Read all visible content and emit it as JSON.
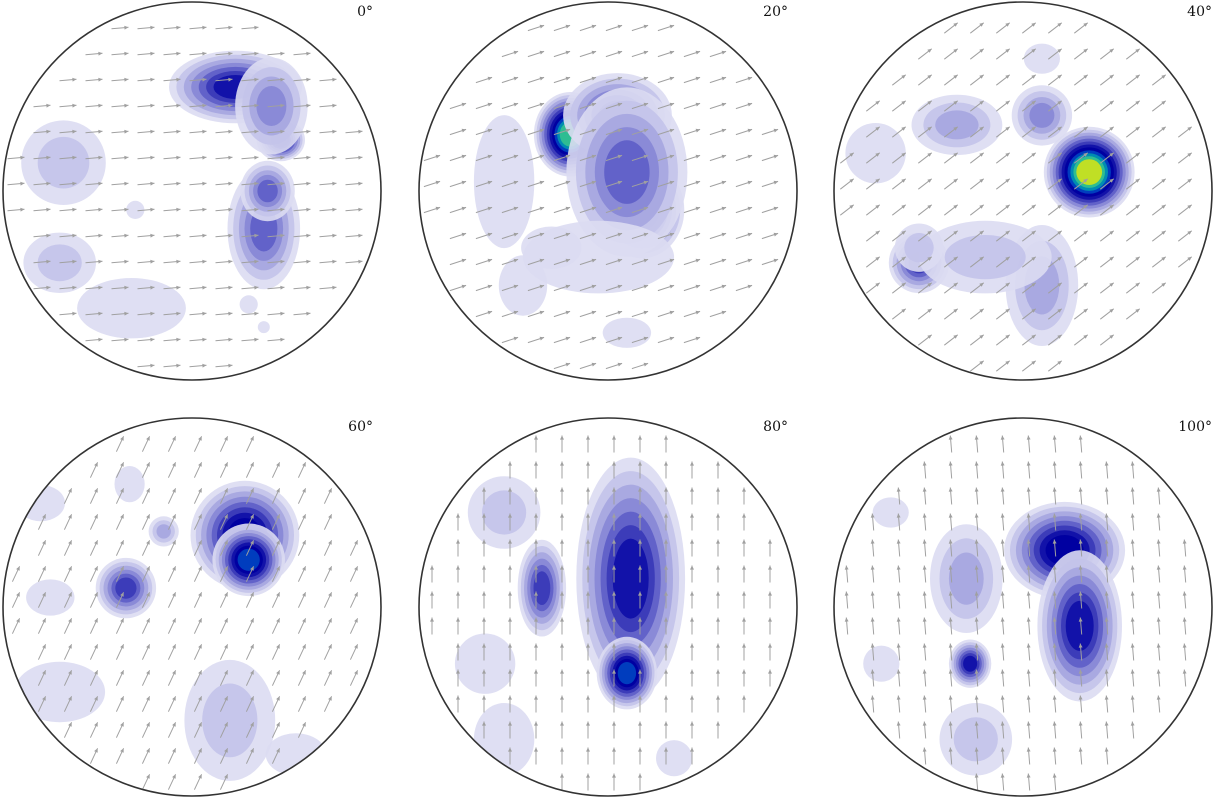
{
  "chart_data": {
    "type": "heatmap",
    "description_kind": "pole figure density contours with vector field",
    "grid": false,
    "legend": false,
    "colormap": [
      "#dcdcf2",
      "#c4c4ea",
      "#a8a8e0",
      "#8888d6",
      "#6060c8",
      "#3a3ab8",
      "#1010a8",
      "#0000a0",
      "#0040c0",
      "#0090b0",
      "#30c090",
      "#c8e020",
      "#f0d000",
      "#f02000"
    ],
    "arrow_color": "#a0a0a0",
    "panels": [
      {
        "label": "0°",
        "angle_deg": 0,
        "arrow_direction_deg": 5,
        "peak_level": 8,
        "blobs": [
          {
            "x": 0.23,
            "y": 0.55,
            "sx": 0.22,
            "sy": 0.12,
            "level": 7
          },
          {
            "x": 0.47,
            "y": 0.27,
            "sx": 0.08,
            "sy": 0.07,
            "level": 8
          },
          {
            "x": 0.42,
            "y": 0.45,
            "sx": 0.12,
            "sy": 0.16,
            "level": 4
          },
          {
            "x": -0.68,
            "y": 0.15,
            "sx": 0.14,
            "sy": 0.14,
            "level": 2
          },
          {
            "x": -0.7,
            "y": -0.38,
            "sx": 0.12,
            "sy": 0.1,
            "level": 2
          },
          {
            "x": -0.32,
            "y": -0.62,
            "sx": 0.18,
            "sy": 0.1,
            "level": 1
          },
          {
            "x": 0.38,
            "y": -0.2,
            "sx": 0.12,
            "sy": 0.2,
            "level": 5
          },
          {
            "x": 0.4,
            "y": 0.0,
            "sx": 0.09,
            "sy": 0.1,
            "level": 5
          },
          {
            "x": -0.3,
            "y": -0.1,
            "sx": 0.03,
            "sy": 0.03,
            "level": 1
          },
          {
            "x": 0.3,
            "y": -0.6,
            "sx": 0.03,
            "sy": 0.03,
            "level": 1
          },
          {
            "x": 0.38,
            "y": -0.72,
            "sx": 0.02,
            "sy": 0.02,
            "level": 1
          }
        ]
      },
      {
        "label": "20°",
        "angle_deg": 20,
        "arrow_direction_deg": 18,
        "peak_level": 11,
        "blobs": [
          {
            "x": -0.2,
            "y": 0.3,
            "sx": 0.12,
            "sy": 0.14,
            "level": 11
          },
          {
            "x": 0.18,
            "y": -0.1,
            "sx": 0.14,
            "sy": 0.16,
            "level": 8
          },
          {
            "x": 0.05,
            "y": 0.4,
            "sx": 0.18,
            "sy": 0.14,
            "level": 6
          },
          {
            "x": 0.1,
            "y": 0.1,
            "sx": 0.2,
            "sy": 0.28,
            "level": 5
          },
          {
            "x": -0.55,
            "y": 0.05,
            "sx": 0.1,
            "sy": 0.22,
            "level": 1
          },
          {
            "x": -0.05,
            "y": -0.35,
            "sx": 0.25,
            "sy": 0.12,
            "level": 1
          },
          {
            "x": -0.45,
            "y": -0.5,
            "sx": 0.08,
            "sy": 0.1,
            "level": 1
          },
          {
            "x": 0.1,
            "y": -0.75,
            "sx": 0.08,
            "sy": 0.05,
            "level": 1
          },
          {
            "x": -0.3,
            "y": -0.3,
            "sx": 0.1,
            "sy": 0.07,
            "level": 1
          }
        ]
      },
      {
        "label": "40°",
        "angle_deg": 40,
        "arrow_direction_deg": 38,
        "peak_level": 12,
        "blobs": [
          {
            "x": 0.35,
            "y": 0.1,
            "sx": 0.15,
            "sy": 0.15,
            "level": 12
          },
          {
            "x": 0.1,
            "y": 0.4,
            "sx": 0.1,
            "sy": 0.1,
            "level": 4
          },
          {
            "x": -0.35,
            "y": 0.35,
            "sx": 0.15,
            "sy": 0.1,
            "level": 3
          },
          {
            "x": -0.55,
            "y": -0.38,
            "sx": 0.1,
            "sy": 0.1,
            "level": 6
          },
          {
            "x": 0.1,
            "y": -0.5,
            "sx": 0.12,
            "sy": 0.2,
            "level": 3
          },
          {
            "x": -0.2,
            "y": -0.35,
            "sx": 0.22,
            "sy": 0.12,
            "level": 2
          },
          {
            "x": -0.78,
            "y": 0.2,
            "sx": 0.1,
            "sy": 0.1,
            "level": 1
          },
          {
            "x": -0.55,
            "y": -0.3,
            "sx": 0.08,
            "sy": 0.08,
            "level": 2
          },
          {
            "x": 0.1,
            "y": 0.7,
            "sx": 0.06,
            "sy": 0.05,
            "level": 1
          }
        ]
      },
      {
        "label": "60°",
        "angle_deg": 60,
        "arrow_direction_deg": 65,
        "peak_level": 9,
        "blobs": [
          {
            "x": 0.28,
            "y": 0.38,
            "sx": 0.18,
            "sy": 0.18,
            "level": 8
          },
          {
            "x": 0.3,
            "y": 0.25,
            "sx": 0.12,
            "sy": 0.12,
            "level": 9
          },
          {
            "x": -0.35,
            "y": 0.1,
            "sx": 0.1,
            "sy": 0.1,
            "level": 6
          },
          {
            "x": -0.15,
            "y": 0.4,
            "sx": 0.05,
            "sy": 0.05,
            "level": 3
          },
          {
            "x": 0.2,
            "y": -0.6,
            "sx": 0.15,
            "sy": 0.2,
            "level": 2
          },
          {
            "x": -0.7,
            "y": -0.45,
            "sx": 0.15,
            "sy": 0.1,
            "level": 1
          },
          {
            "x": -0.75,
            "y": 0.05,
            "sx": 0.08,
            "sy": 0.06,
            "level": 1
          },
          {
            "x": -0.8,
            "y": 0.55,
            "sx": 0.08,
            "sy": 0.06,
            "level": 1
          },
          {
            "x": -0.33,
            "y": 0.65,
            "sx": 0.05,
            "sy": 0.06,
            "level": 1
          },
          {
            "x": 0.55,
            "y": -0.78,
            "sx": 0.1,
            "sy": 0.07,
            "level": 1
          }
        ]
      },
      {
        "label": "80°",
        "angle_deg": 80,
        "arrow_direction_deg": 90,
        "peak_level": 13,
        "blobs": [
          {
            "x": 0.18,
            "y": 0.2,
            "sx": 0.06,
            "sy": 0.06,
            "level": 13
          },
          {
            "x": 0.05,
            "y": 0.1,
            "sx": 0.06,
            "sy": 0.06,
            "level": 13
          },
          {
            "x": 0.12,
            "y": 0.15,
            "sx": 0.18,
            "sy": 0.4,
            "level": 7
          },
          {
            "x": 0.1,
            "y": -0.35,
            "sx": 0.1,
            "sy": 0.12,
            "level": 9
          },
          {
            "x": -0.35,
            "y": 0.1,
            "sx": 0.08,
            "sy": 0.16,
            "level": 6
          },
          {
            "x": -0.55,
            "y": 0.5,
            "sx": 0.12,
            "sy": 0.12,
            "level": 2
          },
          {
            "x": -0.65,
            "y": -0.3,
            "sx": 0.1,
            "sy": 0.1,
            "level": 1
          },
          {
            "x": -0.55,
            "y": -0.7,
            "sx": 0.1,
            "sy": 0.12,
            "level": 1
          },
          {
            "x": 0.35,
            "y": -0.8,
            "sx": 0.06,
            "sy": 0.06,
            "level": 1
          }
        ]
      },
      {
        "label": "100°",
        "angle_deg": 100,
        "arrow_direction_deg": 95,
        "peak_level": 8,
        "blobs": [
          {
            "x": 0.22,
            "y": 0.3,
            "sx": 0.2,
            "sy": 0.16,
            "level": 8
          },
          {
            "x": 0.3,
            "y": -0.1,
            "sx": 0.14,
            "sy": 0.25,
            "level": 7
          },
          {
            "x": -0.3,
            "y": 0.15,
            "sx": 0.12,
            "sy": 0.18,
            "level": 3
          },
          {
            "x": -0.28,
            "y": -0.3,
            "sx": 0.07,
            "sy": 0.08,
            "level": 7
          },
          {
            "x": -0.25,
            "y": -0.7,
            "sx": 0.12,
            "sy": 0.12,
            "level": 2
          },
          {
            "x": -0.75,
            "y": -0.3,
            "sx": 0.06,
            "sy": 0.06,
            "level": 1
          },
          {
            "x": -0.7,
            "y": 0.5,
            "sx": 0.06,
            "sy": 0.05,
            "level": 1
          }
        ]
      }
    ]
  }
}
